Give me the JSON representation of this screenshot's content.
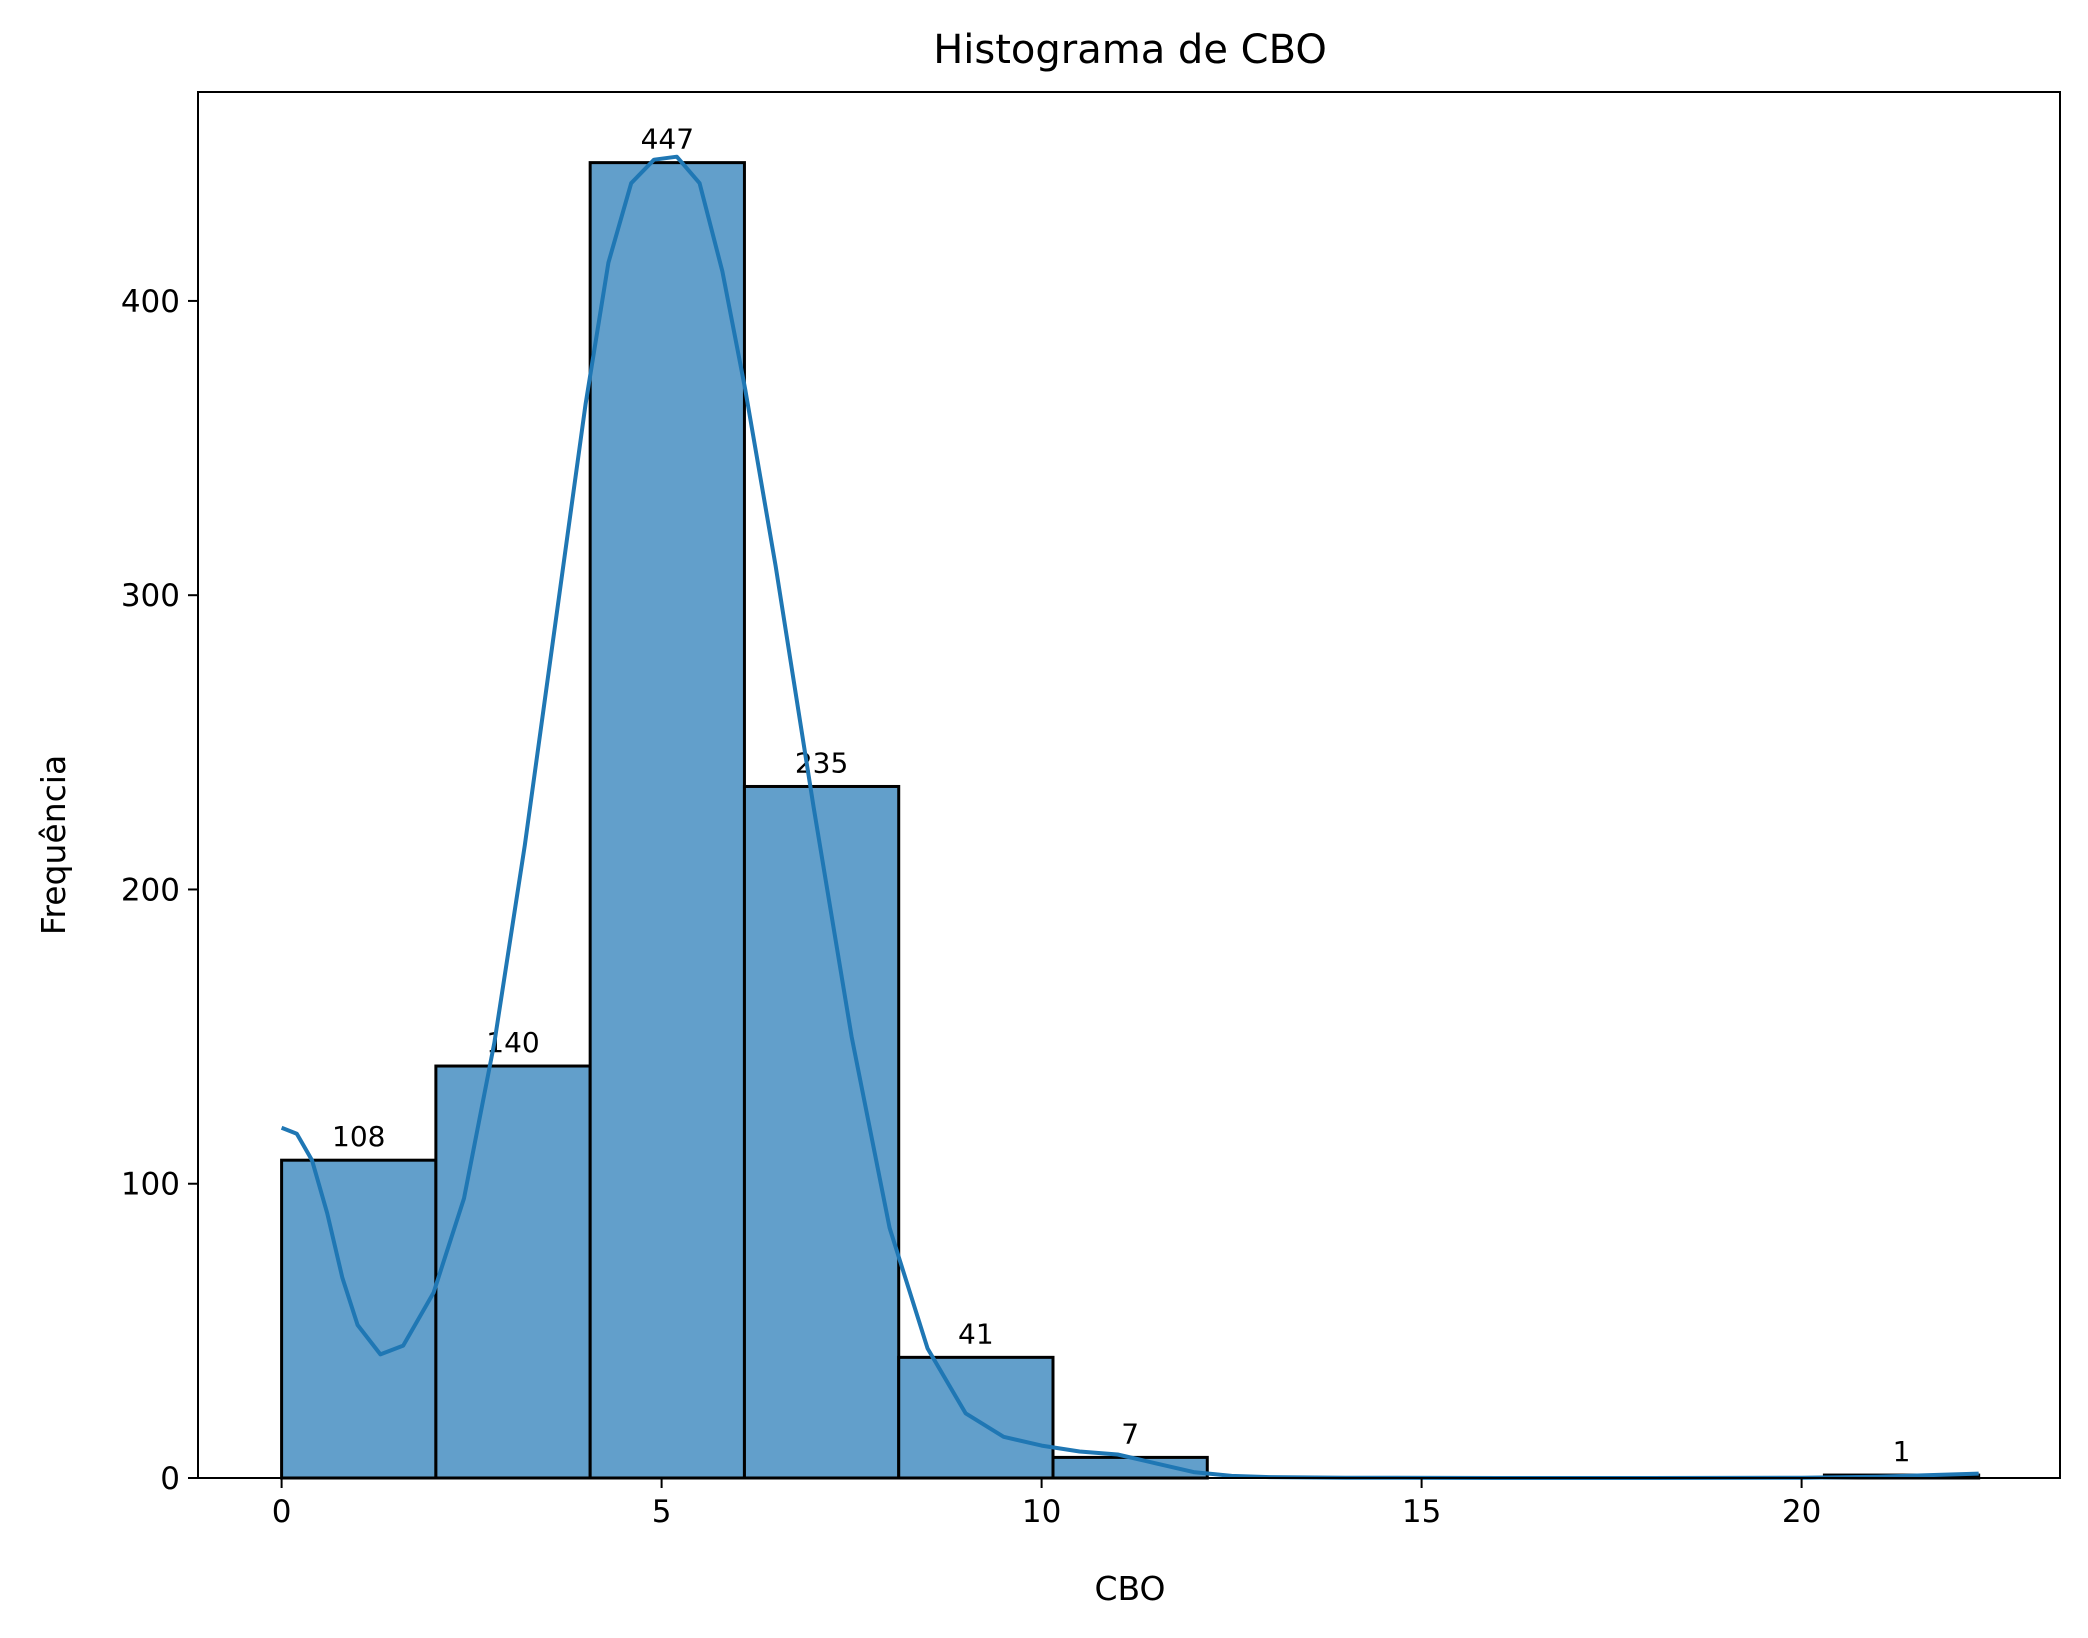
{
  "chart_data": {
    "type": "bar",
    "title": "Histograma de CBO",
    "xlabel": "CBO",
    "ylabel": "Frequência",
    "xlim": [
      -1.1,
      23.4
    ],
    "ylim": [
      0,
      471
    ],
    "xticks": [
      0,
      5,
      10,
      15,
      20
    ],
    "yticks": [
      0,
      100,
      200,
      300,
      400
    ],
    "grid": false,
    "bins": [
      {
        "x0": 0,
        "x1": 2.03,
        "count": 108,
        "label": "108"
      },
      {
        "x0": 2.03,
        "x1": 4.06,
        "count": 140,
        "label": "140"
      },
      {
        "x0": 4.06,
        "x1": 6.09,
        "count": 447,
        "label": "447"
      },
      {
        "x0": 6.09,
        "x1": 8.12,
        "count": 235,
        "label": "235"
      },
      {
        "x0": 8.12,
        "x1": 10.15,
        "count": 41,
        "label": "41"
      },
      {
        "x0": 10.15,
        "x1": 12.18,
        "count": 7,
        "label": "7"
      },
      {
        "x0": 12.18,
        "x1": 14.21,
        "count": 0,
        "label": ""
      },
      {
        "x0": 14.21,
        "x1": 16.24,
        "count": 0,
        "label": ""
      },
      {
        "x0": 16.24,
        "x1": 18.27,
        "count": 0,
        "label": ""
      },
      {
        "x0": 18.27,
        "x1": 20.3,
        "count": 0,
        "label": ""
      },
      {
        "x0": 20.3,
        "x1": 22.33,
        "count": 1,
        "label": "1"
      }
    ],
    "kde": {
      "x": [
        0,
        0.2,
        0.4,
        0.6,
        0.8,
        1.0,
        1.3,
        1.6,
        2.0,
        2.4,
        2.8,
        3.2,
        3.6,
        4.0,
        4.3,
        4.6,
        4.9,
        5.2,
        5.5,
        5.8,
        6.1,
        6.5,
        7.0,
        7.5,
        8.0,
        8.5,
        9.0,
        9.5,
        10.0,
        10.5,
        11.0,
        11.5,
        12.0,
        12.5,
        13.0,
        14.0,
        16.0,
        18.0,
        20.0,
        21.0,
        22.33
      ],
      "y": [
        119,
        117,
        108,
        90,
        68,
        52,
        42,
        45,
        63,
        95,
        148,
        215,
        290,
        365,
        413,
        440,
        448,
        449,
        440,
        410,
        370,
        310,
        228,
        150,
        85,
        44,
        22,
        14,
        11,
        9,
        8,
        5,
        2,
        0.7,
        0.3,
        0.1,
        0,
        0,
        0.1,
        0.4,
        1.5
      ],
      "color": "#1f77b4"
    },
    "colors": {
      "bar_fill": "#629fcb",
      "bar_edge": "#000000",
      "kde_line": "#1f77b4"
    }
  }
}
